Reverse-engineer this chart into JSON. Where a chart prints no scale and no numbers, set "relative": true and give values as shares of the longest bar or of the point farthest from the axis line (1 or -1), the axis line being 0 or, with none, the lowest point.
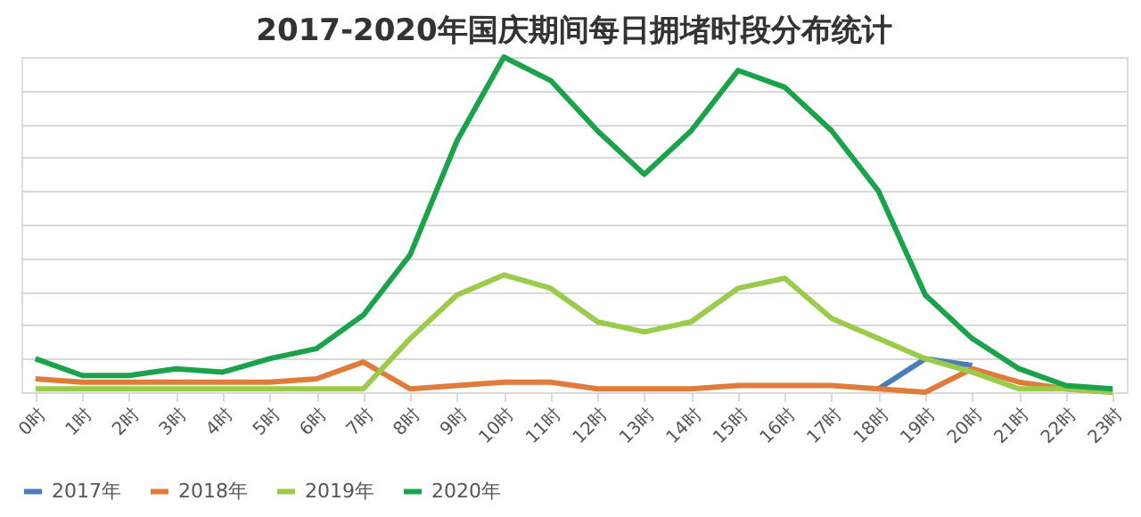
{
  "chart_data": {
    "type": "line",
    "title": "2017-2020年国庆期间每日拥堵时段分布统计",
    "relative": true,
    "grid": "y",
    "legend": "bottom",
    "marker": "none",
    "line_style": "solid",
    "categories": [
      "0时",
      "1时",
      "2时",
      "3时",
      "4时",
      "5时",
      "6时",
      "7时",
      "8时",
      "9时",
      "10时",
      "11时",
      "12时",
      "13时",
      "14时",
      "15时",
      "16时",
      "17时",
      "18时",
      "19时",
      "20时",
      "21时",
      "22时",
      "23时"
    ],
    "series": [
      {
        "name": "2017年",
        "color": "#4a7ebb",
        "values": [
          null,
          null,
          null,
          null,
          null,
          null,
          null,
          null,
          null,
          null,
          null,
          null,
          null,
          null,
          null,
          null,
          null,
          null,
          0.01,
          0.1,
          0.08,
          null,
          null,
          null
        ]
      },
      {
        "name": "2018年",
        "color": "#e07b39",
        "values": [
          0.04,
          0.03,
          0.03,
          0.03,
          0.03,
          0.03,
          0.04,
          0.09,
          0.01,
          0.02,
          0.03,
          0.03,
          0.01,
          0.01,
          0.01,
          0.02,
          0.02,
          0.02,
          0.01,
          0,
          0.07,
          0.03,
          0.01,
          0
        ]
      },
      {
        "name": "2019年",
        "color": "#9bcb4a",
        "values": [
          0.01,
          0.01,
          0.01,
          0.01,
          0.01,
          0.01,
          0.01,
          0.01,
          0.16,
          0.29,
          0.35,
          0.31,
          0.21,
          0.18,
          0.21,
          0.31,
          0.34,
          0.22,
          0.16,
          0.1,
          0.06,
          0.01,
          0.01,
          0
        ]
      },
      {
        "name": "2020年",
        "color": "#1aa34a",
        "values": [
          0.1,
          0.05,
          0.05,
          0.07,
          0.06,
          0.1,
          0.13,
          0.23,
          0.41,
          0.75,
          1,
          0.93,
          0.78,
          0.65,
          0.78,
          0.96,
          0.91,
          0.78,
          0.6,
          0.29,
          0.16,
          0.07,
          0.02,
          0.01
        ]
      }
    ]
  }
}
